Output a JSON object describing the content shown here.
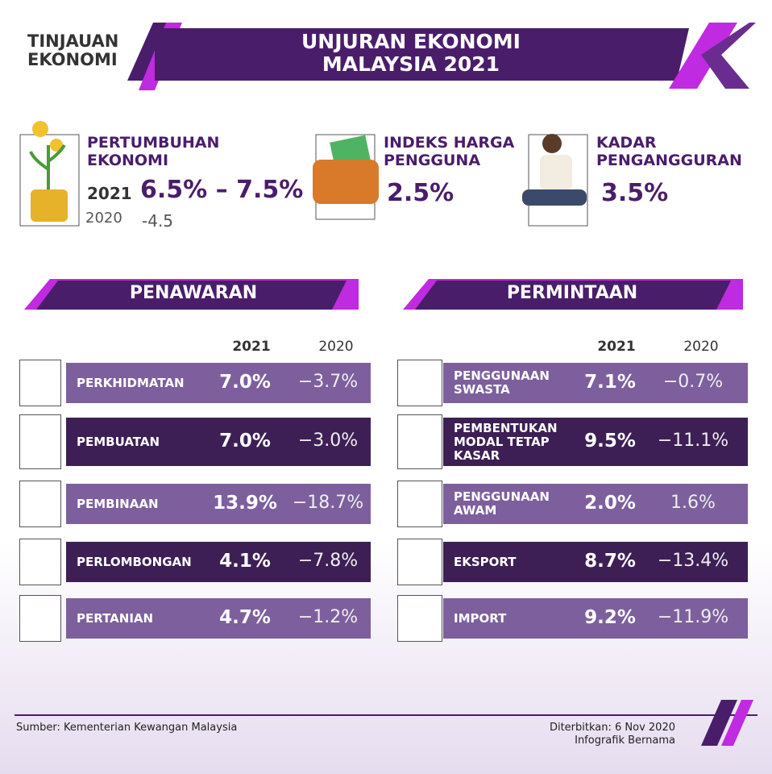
{
  "header": {
    "brand": [
      "TINJAUAN",
      "EKONOMI"
    ],
    "title": [
      "UNJURAN EKONOMI",
      "MALAYSIA 2021"
    ]
  },
  "highlights": [
    {
      "label": [
        "PERTUMBUHAN",
        "EKONOMI"
      ],
      "year": "2021",
      "value": "6.5% – 7.5%",
      "prev_year": "2020",
      "prev_value": "-4.5"
    },
    {
      "label": [
        "INDEKS HARGA",
        "PENGGUNA"
      ],
      "value": "2.5%"
    },
    {
      "label": [
        "KADAR",
        "PENGANGGURAN"
      ],
      "value": "3.5%"
    }
  ],
  "sections": [
    {
      "title": "PENAWARAN",
      "columns": [
        "2021",
        "2020"
      ],
      "rows": [
        {
          "label": [
            "PERKHIDMATAN"
          ],
          "values": [
            "7.0%",
            "−3.7%"
          ]
        },
        {
          "label": [
            "PEMBUATAN"
          ],
          "values": [
            "7.0%",
            "−3.0%"
          ]
        },
        {
          "label": [
            "PEMBINAAN"
          ],
          "values": [
            "13.9%",
            "−18.7%"
          ]
        },
        {
          "label": [
            "PERLOMBONGAN"
          ],
          "values": [
            "4.1%",
            "−7.8%"
          ]
        },
        {
          "label": [
            "PERTANIAN"
          ],
          "values": [
            "4.7%",
            "−1.2%"
          ]
        }
      ]
    },
    {
      "title": "PERMINTAAN",
      "columns": [
        "2021",
        "2020"
      ],
      "rows": [
        {
          "label": [
            "PENGGUNAAN",
            "SWASTA"
          ],
          "values": [
            "7.1%",
            "−0.7%"
          ]
        },
        {
          "label": [
            "PEMBENTUKAN",
            "MODAL TETAP",
            "KASAR"
          ],
          "values": [
            "9.5%",
            "−11.1%"
          ]
        },
        {
          "label": [
            "PENGGUNAAN",
            "AWAM"
          ],
          "values": [
            "2.0%",
            "1.6%"
          ]
        },
        {
          "label": [
            "EKSPORT"
          ],
          "values": [
            "8.7%",
            "−13.4%"
          ]
        },
        {
          "label": [
            "IMPORT"
          ],
          "values": [
            "9.2%",
            "−11.9%"
          ]
        }
      ]
    }
  ],
  "footer": {
    "source": "Sumber: Kementerian Kewangan Malaysia",
    "published": "Diterbitkan: 6 Nov 2020",
    "credit": "Infografik Bernama"
  }
}
